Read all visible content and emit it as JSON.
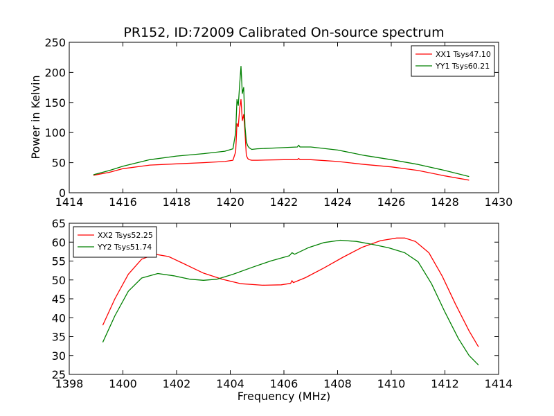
{
  "chart_data": [
    {
      "type": "line",
      "title": "PR152, ID:72009 Calibrated On-source spectrum",
      "xlabel": "",
      "ylabel": "Power in Kelvin",
      "xlim": [
        1414,
        1430
      ],
      "ylim": [
        0,
        250
      ],
      "xticks": [
        "1414",
        "1416",
        "1418",
        "1420",
        "1422",
        "1424",
        "1426",
        "1428",
        "1430"
      ],
      "yticks": [
        "0",
        "50",
        "100",
        "150",
        "200",
        "250"
      ],
      "legend_position": "top-right",
      "grid": false,
      "series": [
        {
          "name": "XX1 Tsys47.10",
          "color": "#ff0000",
          "x": [
            1414.9,
            1415.5,
            1416.0,
            1417.0,
            1418.0,
            1419.0,
            1419.8,
            1420.1,
            1420.2,
            1420.25,
            1420.3,
            1420.35,
            1420.4,
            1420.45,
            1420.5,
            1420.55,
            1420.6,
            1420.65,
            1420.7,
            1420.8,
            1421.0,
            1422.0,
            1422.5,
            1422.55,
            1422.6,
            1423.0,
            1424.0,
            1425.0,
            1426.0,
            1427.0,
            1428.0,
            1428.9
          ],
          "values": [
            29,
            34,
            40,
            46,
            48,
            50,
            52,
            54,
            68,
            115,
            110,
            140,
            155,
            120,
            130,
            100,
            62,
            57,
            55,
            54,
            54,
            55,
            55,
            57,
            55,
            55,
            52,
            47,
            43,
            37,
            28,
            21
          ]
        },
        {
          "name": "YY1 Tsys60.21",
          "color": "#008000",
          "x": [
            1414.9,
            1415.5,
            1416.0,
            1417.0,
            1418.0,
            1419.0,
            1419.8,
            1420.1,
            1420.2,
            1420.25,
            1420.3,
            1420.35,
            1420.4,
            1420.45,
            1420.5,
            1420.55,
            1420.6,
            1420.65,
            1420.7,
            1420.8,
            1421.0,
            1422.0,
            1422.5,
            1422.55,
            1422.6,
            1423.0,
            1424.0,
            1425.0,
            1426.0,
            1427.0,
            1428.0,
            1428.9
          ],
          "values": [
            30,
            37,
            44,
            55,
            61,
            65,
            69,
            73,
            100,
            155,
            145,
            180,
            210,
            165,
            175,
            110,
            85,
            78,
            75,
            72,
            73,
            75,
            76,
            79,
            76,
            76,
            71,
            62,
            55,
            47,
            37,
            27
          ]
        }
      ]
    },
    {
      "type": "line",
      "title": "",
      "xlabel": "Frequency (MHz)",
      "ylabel": "",
      "xlim": [
        1398,
        1414
      ],
      "ylim": [
        25,
        65
      ],
      "xticks": [
        "1398",
        "1400",
        "1402",
        "1404",
        "1406",
        "1408",
        "1410",
        "1412",
        "1414"
      ],
      "yticks": [
        "25",
        "30",
        "35",
        "40",
        "45",
        "50",
        "55",
        "60",
        "65"
      ],
      "legend_position": "top-left",
      "grid": false,
      "series": [
        {
          "name": "XX2 Tsys52.25",
          "color": "#ff0000",
          "x": [
            1399.25,
            1399.7,
            1400.2,
            1400.7,
            1401.2,
            1401.7,
            1402.3,
            1403.0,
            1403.7,
            1404.4,
            1405.2,
            1405.9,
            1406.25,
            1406.3,
            1406.35,
            1406.8,
            1407.5,
            1408.2,
            1408.9,
            1409.6,
            1410.2,
            1410.5,
            1410.9,
            1411.4,
            1411.9,
            1412.4,
            1412.9,
            1413.25
          ],
          "values": [
            38,
            45,
            51.5,
            55.5,
            56.8,
            56.2,
            54.2,
            51.8,
            50.2,
            49.0,
            48.6,
            48.7,
            49.1,
            49.8,
            49.3,
            50.6,
            53.2,
            56.0,
            58.6,
            60.4,
            61.1,
            61.1,
            60.2,
            57.2,
            51.0,
            43.5,
            36.5,
            32.3
          ]
        },
        {
          "name": "YY2 Tsys51.74",
          "color": "#008000",
          "x": [
            1399.25,
            1399.7,
            1400.2,
            1400.7,
            1401.3,
            1401.9,
            1402.5,
            1403.0,
            1403.5,
            1404.1,
            1404.8,
            1405.5,
            1406.2,
            1406.3,
            1406.4,
            1406.9,
            1407.5,
            1408.1,
            1408.7,
            1409.3,
            1409.9,
            1410.5,
            1411.0,
            1411.5,
            1412.0,
            1412.5,
            1412.9,
            1413.25
          ],
          "values": [
            33.5,
            40.5,
            47.0,
            50.5,
            51.7,
            51.1,
            50.2,
            49.9,
            50.2,
            51.5,
            53.3,
            55.0,
            56.4,
            57.2,
            56.8,
            58.5,
            59.9,
            60.5,
            60.2,
            59.4,
            58.5,
            57.2,
            54.8,
            49.0,
            41.5,
            34.5,
            30.0,
            27.5
          ]
        }
      ]
    }
  ]
}
